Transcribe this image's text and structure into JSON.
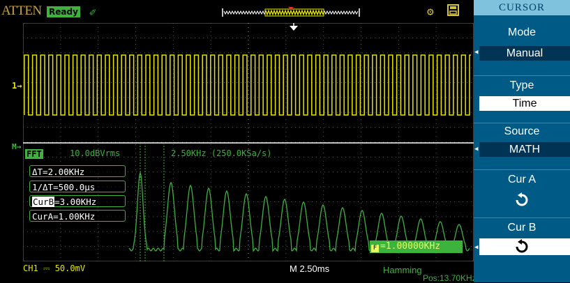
{
  "header": {
    "brand": "ATTEN",
    "status": "Ready",
    "trigger_icon": "trigger-status-icon",
    "memory_icon": "waveform-memory-map",
    "usb_icon": "usb-icon",
    "save_icon": "save-icon"
  },
  "waveform": {
    "ch1_marker": "1",
    "math_marker": "M",
    "fft_label": "FFT",
    "fft_scale": "10.0dBVrms",
    "fft_span": "2.50KHz (250.0KSa/s)"
  },
  "cursor_readouts": {
    "delta_t": "ΔT=2.00KHz",
    "inv_delta_t": "1/ΔT=500.0μs",
    "cur_b_tag": "CurB",
    "cur_b_value": "=3.00KHz",
    "cur_a": "CurA=1.00KHz"
  },
  "frequency_box": {
    "icon": "F",
    "value": "=1.00000KHz"
  },
  "footer": {
    "ch1": "CH1 ⎓ 50.0mV",
    "timebase": "M 2.50ms",
    "window": "Hamming",
    "position": "Pos:13.70KHz"
  },
  "menu": {
    "title": "CURSOR",
    "items": [
      {
        "label": "Mode",
        "value": "Manual",
        "style": "dark"
      },
      {
        "label": "Type",
        "value": "Time",
        "style": "light"
      },
      {
        "label": "Source",
        "value": "MATH",
        "style": "dark"
      },
      {
        "label": "Cur A",
        "value": "",
        "style": "knob"
      },
      {
        "label": "Cur B",
        "value": "",
        "style": "knob-light"
      }
    ]
  },
  "colors": {
    "ch1": "#e6e600",
    "math": "#3fb13f",
    "menu_bg": "#005a86",
    "menu_title_bg": "#7ec2de"
  }
}
